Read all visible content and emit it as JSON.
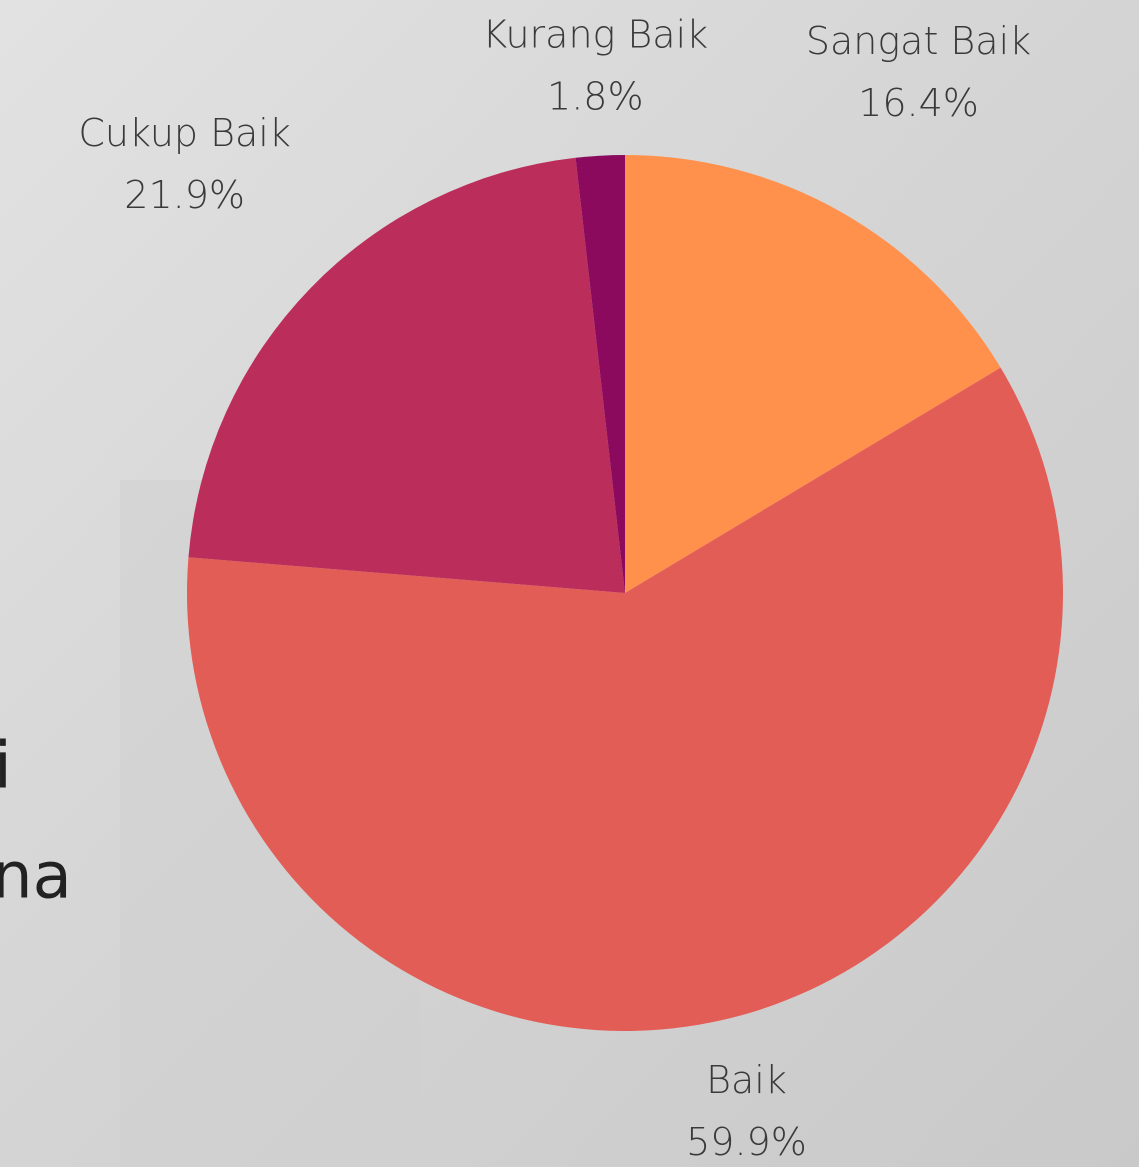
{
  "background_text": [
    "i",
    "na"
  ],
  "chart_data": {
    "type": "pie",
    "categories": [
      "Sangat Baik",
      "Baik",
      "Cukup Baik",
      "Kurang Baik"
    ],
    "values": [
      16.4,
      59.9,
      21.9,
      1.8
    ],
    "value_labels": [
      "16.4%",
      "59.9%",
      "21.9%",
      "1.8%"
    ],
    "colors": [
      "#ff914d",
      "#e35d57",
      "#bb2d5b",
      "#8b0a5e"
    ]
  }
}
